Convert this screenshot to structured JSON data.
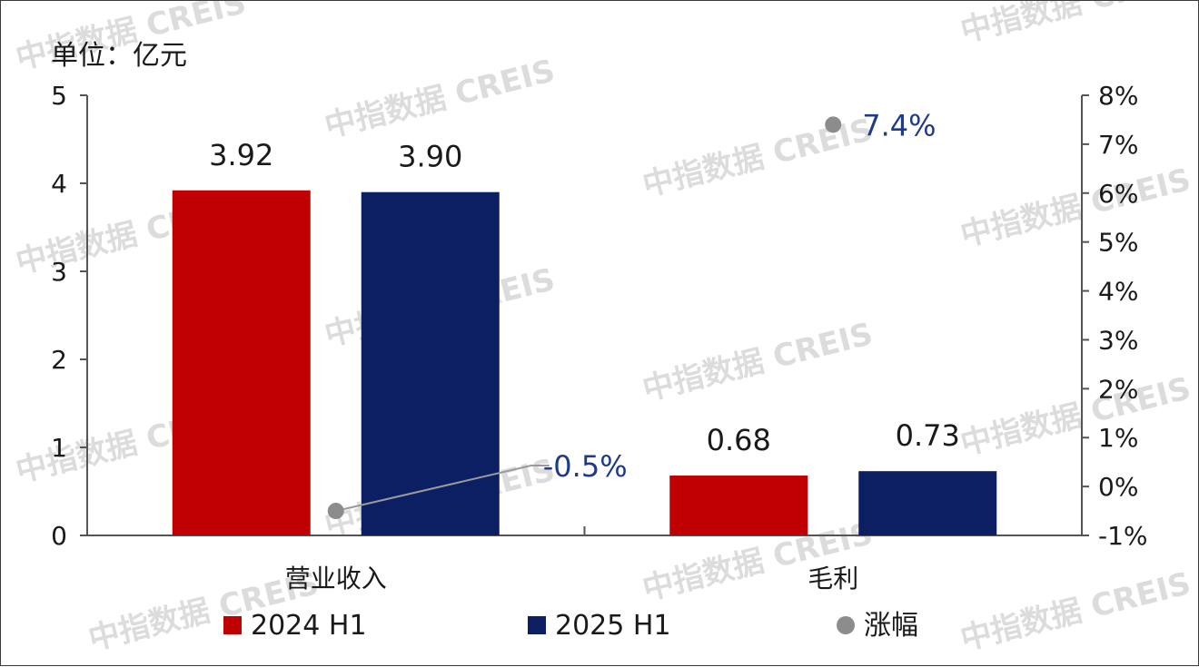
{
  "chart_data": {
    "type": "bar",
    "unit_label": "单位：亿元",
    "categories": [
      "营业收入",
      "毛利"
    ],
    "series": [
      {
        "name": "2024 H1",
        "values": [
          3.92,
          0.68
        ],
        "color": "#c00000",
        "labels": [
          "3.92",
          "0.68"
        ]
      },
      {
        "name": "2025 H1",
        "values": [
          3.9,
          0.73
        ],
        "color": "#0d1f63",
        "labels": [
          "3.90",
          "0.73"
        ]
      }
    ],
    "secondary_series": {
      "name": "涨幅",
      "type": "scatter",
      "values": [
        -0.5,
        7.4
      ],
      "labels": [
        "-0.5%",
        "7.4%"
      ],
      "color": "#8c8c8c",
      "label_color": "#1f3a8a"
    },
    "y_left": {
      "min": 0,
      "max": 5,
      "ticks": [
        "0",
        "1",
        "2",
        "3",
        "4",
        "5"
      ]
    },
    "y_right": {
      "min": -1,
      "max": 8,
      "ticks": [
        "-1%",
        "0%",
        "1%",
        "2%",
        "3%",
        "4%",
        "5%",
        "6%",
        "7%",
        "8%"
      ]
    },
    "legend_position": "bottom"
  },
  "watermark": "中指数据 CREIS"
}
